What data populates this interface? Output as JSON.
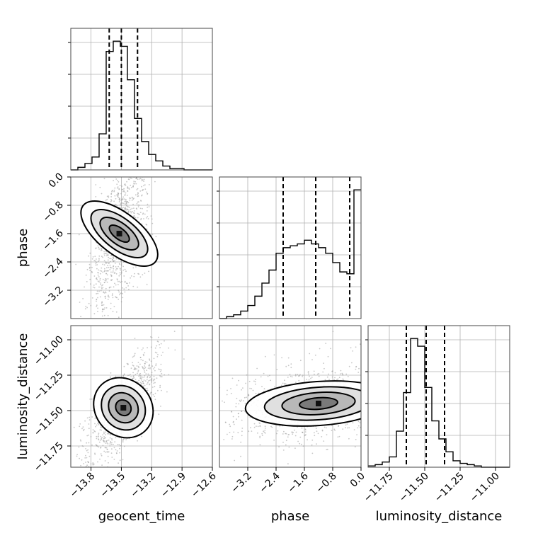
{
  "chart_data": {
    "type": "corner",
    "parameters": [
      {
        "key": "geocent_time",
        "label": "geocent_time",
        "range": [
          -14.0,
          -12.6
        ],
        "ticks": [
          -13.8,
          -13.5,
          -13.2,
          -12.9,
          -12.6
        ],
        "tick_labels": [
          "−13.8",
          "−13.5",
          "−13.2",
          "−12.9",
          "−12.6"
        ],
        "quantiles": [
          -13.62,
          -13.5,
          -13.34
        ]
      },
      {
        "key": "phase",
        "label": "phase",
        "range": [
          -4.0,
          0.0
        ],
        "ticks": [
          -3.2,
          -2.4,
          -1.6,
          -0.8,
          0.0
        ],
        "tick_labels": [
          "−3.2",
          "−2.4",
          "−1.6",
          "−0.8",
          "0.0"
        ],
        "quantiles": [
          -2.2,
          -1.28,
          -0.32
        ]
      },
      {
        "key": "luminosity_distance",
        "label": "luminosity_distance",
        "range": [
          -11.9,
          -10.9
        ],
        "ticks": [
          -11.0,
          -11.25,
          -11.5,
          -11.75
        ],
        "tick_labels": [
          "−11.00",
          "−11.25",
          "−11.50",
          "−11.75"
        ],
        "quantiles": [
          -11.63,
          -11.49,
          -11.36
        ]
      }
    ],
    "histograms": {
      "geocent_time": {
        "edges_start": -14.0,
        "bin_width": 0.07,
        "counts": [
          0,
          2,
          5,
          10,
          28,
          92,
          100,
          96,
          70,
          40,
          22,
          12,
          7,
          3,
          1,
          1,
          0,
          0,
          0,
          0
        ]
      },
      "phase": {
        "edges_start": -4.0,
        "bin_width": 0.2,
        "counts": [
          0,
          1,
          2,
          4,
          7,
          12,
          19,
          26,
          35,
          38,
          39,
          40,
          42,
          40,
          38,
          35,
          30,
          25,
          24,
          69
        ]
      },
      "luminosity_distance": {
        "edges_start": -11.9,
        "bin_width": 0.05,
        "counts": [
          1,
          2,
          4,
          8,
          28,
          58,
          100,
          94,
          62,
          36,
          22,
          12,
          5,
          3,
          2,
          1,
          0,
          0,
          0,
          0
        ]
      }
    },
    "grid": true
  }
}
